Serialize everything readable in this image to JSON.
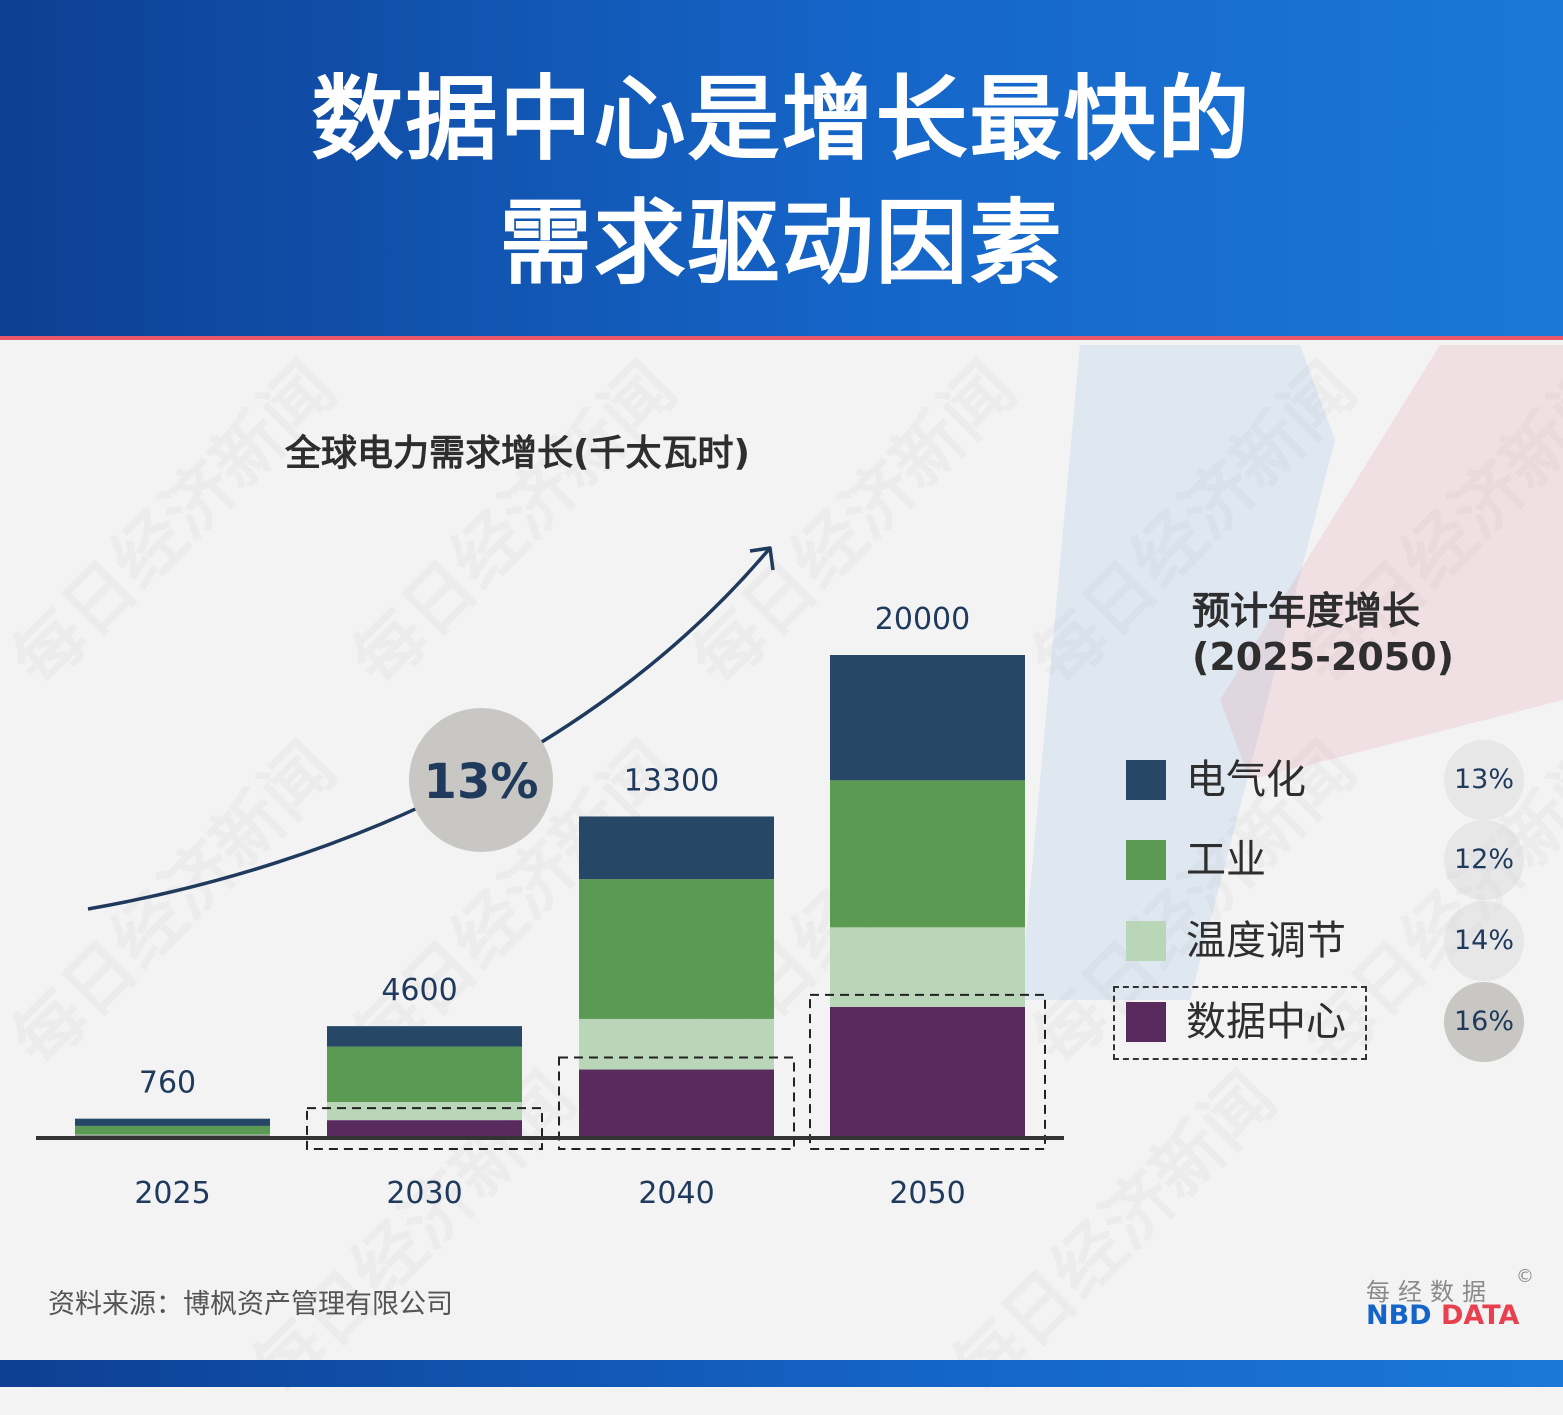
{
  "header": {
    "title_line1": "数据中心是增长最快的",
    "title_line2": "需求驱动因素"
  },
  "colors": {
    "electrification": "#264766",
    "industry": "#5a9a52",
    "cooling": "#b9d7b8",
    "datacenter": "#582a5e",
    "accent_blue": "#1565c8",
    "accent_red": "#e8596c"
  },
  "chart_data": {
    "type": "bar",
    "stacked": true,
    "title": "全球电力需求增长(千太瓦时)",
    "categories": [
      "2025",
      "2030",
      "2040",
      "2050"
    ],
    "totals": [
      760,
      4600,
      13300,
      20000
    ],
    "total_labels": [
      "760",
      "4600",
      "13300",
      "20000"
    ],
    "series": [
      {
        "name": "数据中心",
        "key": "datacenter",
        "values": [
          60,
          700,
          2800,
          5400
        ]
      },
      {
        "name": "温度调节",
        "key": "cooling",
        "values": [
          40,
          750,
          2100,
          3300
        ]
      },
      {
        "name": "工业",
        "key": "industry",
        "values": [
          360,
          2300,
          5800,
          6100
        ]
      },
      {
        "name": "电气化",
        "key": "electrification",
        "values": [
          300,
          850,
          2600,
          5200
        ]
      }
    ],
    "highlighted_series": "数据中心",
    "growth_annotation": "13%",
    "ylim": [
      0,
      20000
    ]
  },
  "legend": {
    "title": "预计年度增长",
    "subtitle": "(2025-2050)",
    "items": [
      {
        "label": "电气化",
        "rate": "13%",
        "key": "electrification"
      },
      {
        "label": "工业",
        "rate": "12%",
        "key": "industry"
      },
      {
        "label": "温度调节",
        "rate": "14%",
        "key": "cooling"
      },
      {
        "label": "数据中心",
        "rate": "16%",
        "key": "datacenter"
      }
    ]
  },
  "footer": {
    "source": "资料来源：博枫资产管理有限公司",
    "logo_cn": "每经数据",
    "logo_copyright": "©",
    "logo_en_1": "NBD",
    "logo_en_2": "DATA"
  },
  "watermark": "每日经济新闻"
}
